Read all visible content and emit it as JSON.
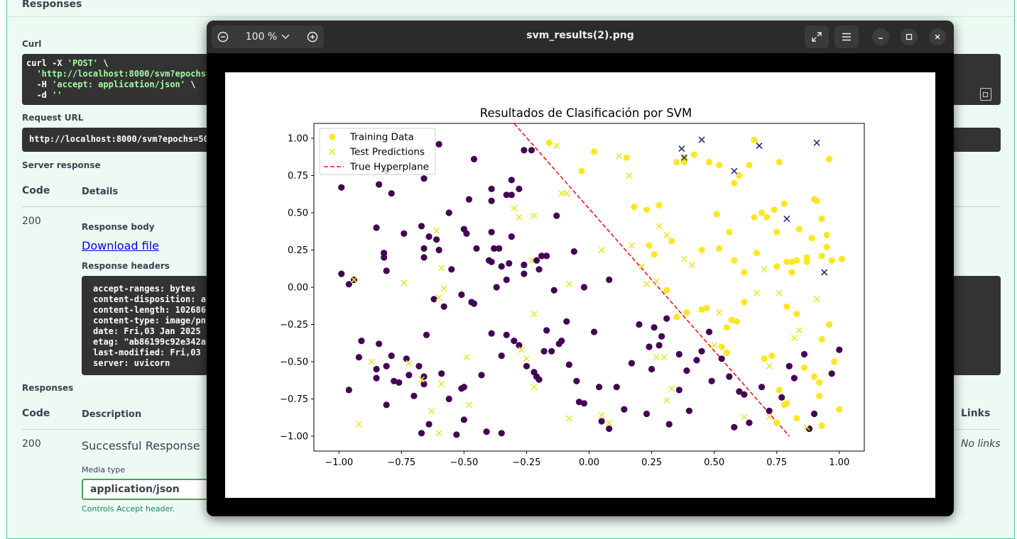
{
  "background": {
    "section_title": "Responses",
    "curl_label": "Curl",
    "curl_lines": [
      "curl -X ",
      "'POST'",
      " \\",
      "  ",
      "'http://localhost:8000/svm?epochs=",
      "  -H ",
      "'accept: application/json'",
      " \\",
      "  -d ",
      "''"
    ],
    "request_url_label": "Request URL",
    "request_url": "http://localhost:8000/svm?epochs=50",
    "server_response_label": "Server response",
    "code_header": "Code",
    "details_header": "Details",
    "status_code": "200",
    "response_body_label": "Response body",
    "download_link": "Download file",
    "response_headers_label": "Response headers",
    "headers": [
      "accept-ranges: bytes",
      "content-disposition: a",
      "content-length: 102686",
      "content-type: image/pn",
      "date: Fri,03 Jan 2025",
      "etag: \"ab86199c92e342a",
      "last-modified: Fri,03",
      "server: uvicorn"
    ],
    "responses_label": "Responses",
    "description_header": "Description",
    "links_header": "Links",
    "resp_code": "200",
    "resp_description": "Successful Response",
    "no_links": "No links",
    "media_type_label": "Media type",
    "media_type_value": "application/json",
    "controls_text": "Controls Accept header."
  },
  "viewer": {
    "zoom_level": "100 %",
    "title": "svm_results(2).png"
  },
  "chart_data": {
    "type": "scatter",
    "title": "Resultados de Clasificación por SVM",
    "xlim": [
      -1.1,
      1.1
    ],
    "ylim": [
      -1.1,
      1.1
    ],
    "ticks": [
      -1.0,
      -0.75,
      -0.5,
      -0.25,
      0.0,
      0.25,
      0.5,
      0.75,
      1.0
    ],
    "tick_labels": [
      "−1.00",
      "−0.75",
      "−0.50",
      "−0.25",
      "0.00",
      "0.25",
      "0.50",
      "0.75",
      "1.00"
    ],
    "legend": [
      "Training Data",
      "Test Predictions",
      "True Hyperplane"
    ],
    "legend_position": "upper-left",
    "colors": {
      "class0": "#440154",
      "class1": "#fde725",
      "test0": "#2a2a7a",
      "test1": "#e3e83b",
      "hyperplane": "#e31a1c"
    },
    "hyperplane": {
      "points": [
        [
          -0.3,
          1.1
        ],
        [
          0.8,
          -1.0
        ]
      ]
    },
    "training_class0": [
      [
        -0.99,
        0.67
      ],
      [
        -0.99,
        0.09
      ],
      [
        -0.96,
        0.02
      ],
      [
        -0.94,
        0.05
      ],
      [
        -0.85,
        0.4
      ],
      [
        -0.84,
        0.69
      ],
      [
        -0.81,
        0.78
      ],
      [
        -0.79,
        0.63
      ],
      [
        -0.82,
        0.23
      ],
      [
        -0.82,
        0.2
      ],
      [
        -0.81,
        0.11
      ],
      [
        -0.74,
        0.36
      ],
      [
        -0.67,
        0.41
      ],
      [
        -0.64,
        0.34
      ],
      [
        -0.66,
        0.26
      ],
      [
        -0.61,
        0.32
      ],
      [
        -0.66,
        0.73
      ],
      [
        -0.6,
        0.96
      ],
      [
        -0.56,
        0.5
      ],
      [
        -0.5,
        0.39
      ],
      [
        -0.49,
        0.36
      ],
      [
        -0.48,
        0.59
      ],
      [
        -0.45,
        0.26
      ],
      [
        -0.46,
        0.86
      ],
      [
        -0.39,
        0.66
      ],
      [
        -0.39,
        0.37
      ],
      [
        -0.38,
        0.26
      ],
      [
        -0.36,
        0.26
      ],
      [
        -0.39,
        0.58
      ],
      [
        -0.35,
        0.14
      ],
      [
        -0.33,
        0.62
      ],
      [
        -0.31,
        0.62
      ],
      [
        -0.31,
        0.72
      ],
      [
        -0.31,
        0.34
      ],
      [
        -0.28,
        0.66
      ],
      [
        -0.26,
        0.92
      ],
      [
        -0.23,
        0.92
      ],
      [
        -0.19,
        0.21
      ],
      [
        -0.17,
        0.21
      ],
      [
        -0.13,
        0.48
      ],
      [
        -0.06,
        0.24
      ],
      [
        -0.6,
        0.25
      ],
      [
        -0.66,
        0.2
      ],
      [
        -0.55,
        0.12
      ],
      [
        -0.62,
        -0.08
      ],
      [
        -0.58,
        -0.13
      ],
      [
        -0.51,
        -0.05
      ],
      [
        -0.47,
        -0.1
      ],
      [
        -0.46,
        -0.11
      ],
      [
        -0.4,
        0.18
      ],
      [
        -0.39,
        0.17
      ],
      [
        -0.37,
        -0.0
      ],
      [
        -0.33,
        0.05
      ],
      [
        -0.32,
        0.16
      ],
      [
        -0.26,
        0.15
      ],
      [
        -0.26,
        0.09
      ],
      [
        -0.21,
        0.18
      ],
      [
        -0.2,
        0.12
      ],
      [
        -0.14,
        -0.02
      ],
      [
        -0.02,
        -0.0
      ],
      [
        0.08,
        0.05
      ],
      [
        -0.92,
        -0.47
      ],
      [
        -0.91,
        -0.36
      ],
      [
        -0.96,
        -0.69
      ],
      [
        -0.85,
        -0.55
      ],
      [
        -0.85,
        -0.61
      ],
      [
        -0.84,
        -0.38
      ],
      [
        -0.81,
        -0.53
      ],
      [
        -0.81,
        -0.79
      ],
      [
        -0.78,
        -0.63
      ],
      [
        -0.79,
        -0.46
      ],
      [
        -0.73,
        -0.48
      ],
      [
        -0.76,
        -0.64
      ],
      [
        -0.7,
        -0.73
      ],
      [
        -0.68,
        -0.53
      ],
      [
        -0.66,
        -0.6
      ],
      [
        -0.66,
        -0.65
      ],
      [
        -0.67,
        -0.98
      ],
      [
        -0.65,
        -0.32
      ],
      [
        -0.59,
        -0.58
      ],
      [
        -0.56,
        -0.75
      ],
      [
        -0.51,
        -0.68
      ],
      [
        -0.5,
        -0.67
      ],
      [
        -0.5,
        -0.89
      ],
      [
        -0.43,
        -0.59
      ],
      [
        -0.41,
        -0.97
      ],
      [
        -0.39,
        -0.31
      ],
      [
        -0.35,
        -0.46
      ],
      [
        -0.35,
        -0.98
      ],
      [
        -0.33,
        -0.32
      ],
      [
        -0.3,
        -0.36
      ],
      [
        -0.28,
        -0.39
      ],
      [
        -0.25,
        -0.53
      ],
      [
        -0.22,
        -0.57
      ],
      [
        -0.2,
        -0.62
      ],
      [
        -0.18,
        -0.43
      ],
      [
        -0.17,
        -0.29
      ],
      [
        -0.15,
        -0.43
      ],
      [
        -0.12,
        -0.38
      ],
      [
        -0.11,
        -0.36
      ],
      [
        -0.09,
        -0.23
      ],
      [
        -0.08,
        -0.52
      ],
      [
        -0.05,
        -0.63
      ],
      [
        -0.04,
        -0.77
      ],
      [
        -0.02,
        -0.78
      ],
      [
        0.02,
        -0.3
      ],
      [
        0.04,
        -0.67
      ],
      [
        0.05,
        -0.9
      ],
      [
        0.08,
        -0.95
      ],
      [
        0.11,
        -0.67
      ],
      [
        0.14,
        -0.82
      ],
      [
        0.17,
        -0.51
      ],
      [
        0.2,
        -0.25
      ],
      [
        0.24,
        -0.4
      ],
      [
        0.25,
        -0.55
      ],
      [
        0.28,
        -0.39
      ],
      [
        0.29,
        -0.33
      ],
      [
        0.31,
        -0.21
      ],
      [
        0.32,
        -0.92
      ],
      [
        0.36,
        -0.69
      ],
      [
        0.39,
        -0.56
      ],
      [
        0.4,
        -0.83
      ],
      [
        0.43,
        -0.49
      ],
      [
        0.45,
        -0.43
      ],
      [
        0.48,
        -0.3
      ],
      [
        0.49,
        -0.63
      ],
      [
        0.53,
        -0.48
      ],
      [
        0.56,
        -0.6
      ],
      [
        0.58,
        -0.94
      ],
      [
        0.6,
        -0.7
      ],
      [
        0.62,
        -0.72
      ],
      [
        0.64,
        -0.91
      ],
      [
        0.69,
        -0.67
      ],
      [
        0.72,
        -0.83
      ],
      [
        0.77,
        -0.74
      ],
      [
        0.8,
        -0.53
      ],
      [
        0.82,
        -0.61
      ],
      [
        0.86,
        -0.45
      ],
      [
        0.88,
        -0.95
      ],
      [
        0.9,
        -0.85
      ],
      [
        0.97,
        -0.58
      ],
      [
        1.0,
        -0.42
      ],
      [
        0.23,
        -0.85
      ],
      [
        0.36,
        -0.45
      ],
      [
        0.26,
        -0.27
      ],
      [
        -0.21,
        -0.6
      ],
      [
        -0.72,
        -0.59
      ],
      [
        -0.64,
        -0.92
      ],
      [
        -0.53,
        -0.99
      ]
    ],
    "training_class1": [
      [
        -0.16,
        0.97
      ],
      [
        -0.03,
        0.78
      ],
      [
        0.02,
        0.91
      ],
      [
        0.15,
        0.87
      ],
      [
        0.18,
        0.54
      ],
      [
        0.23,
        0.52
      ],
      [
        0.24,
        0.28
      ],
      [
        0.28,
        0.55
      ],
      [
        0.26,
        0.22
      ],
      [
        0.31,
        -0.02
      ],
      [
        0.35,
        0.84
      ],
      [
        0.38,
        0.87
      ],
      [
        0.42,
        0.89
      ],
      [
        0.48,
        0.84
      ],
      [
        0.52,
        0.82
      ],
      [
        0.6,
        0.75
      ],
      [
        0.64,
        0.82
      ],
      [
        0.66,
        0.99
      ],
      [
        0.69,
        0.5
      ],
      [
        0.76,
        0.84
      ],
      [
        0.78,
        0.56
      ],
      [
        0.75,
        0.37
      ],
      [
        0.79,
        0.17
      ],
      [
        0.81,
        0.17
      ],
      [
        0.84,
        0.39
      ],
      [
        0.87,
        0.2
      ],
      [
        0.9,
        0.59
      ],
      [
        0.91,
        0.58
      ],
      [
        0.93,
        0.46
      ],
      [
        0.95,
        0.35
      ],
      [
        0.96,
        0.86
      ],
      [
        0.95,
        0.27
      ],
      [
        0.93,
        0.21
      ],
      [
        0.89,
        0.33
      ],
      [
        0.35,
        -0.2
      ],
      [
        0.39,
        -0.17
      ],
      [
        0.45,
        -0.15
      ],
      [
        0.47,
        -0.14
      ],
      [
        0.55,
        -0.27
      ],
      [
        0.57,
        -0.22
      ],
      [
        0.59,
        -0.23
      ],
      [
        0.62,
        -0.1
      ],
      [
        0.56,
        0.37
      ],
      [
        0.52,
        0.26
      ],
      [
        0.58,
        0.18
      ],
      [
        0.58,
        0.7
      ],
      [
        0.66,
        0.47
      ],
      [
        0.74,
        0.52
      ],
      [
        0.75,
        0.14
      ],
      [
        0.81,
        0.1
      ],
      [
        0.83,
        0.18
      ],
      [
        0.79,
        -0.13
      ],
      [
        0.83,
        -0.18
      ],
      [
        0.86,
        -0.54
      ],
      [
        0.9,
        -0.6
      ],
      [
        0.93,
        -0.35
      ],
      [
        0.96,
        -0.25
      ],
      [
        0.98,
        -0.5
      ],
      [
        1.0,
        -0.82
      ],
      [
        0.55,
        -0.44
      ],
      [
        0.53,
        -0.4
      ],
      [
        0.45,
        0.25
      ],
      [
        0.51,
        0.49
      ],
      [
        0.7,
        -0.48
      ],
      [
        0.73,
        -0.46
      ],
      [
        0.76,
        -0.69
      ],
      [
        0.79,
        -0.78
      ],
      [
        0.75,
        -0.91
      ],
      [
        0.83,
        -0.88
      ],
      [
        0.92,
        -0.73
      ],
      [
        0.93,
        -0.93
      ],
      [
        0.62,
        0.1
      ],
      [
        0.67,
        0.23
      ],
      [
        0.71,
        0.47
      ],
      [
        0.87,
        0.17
      ],
      [
        0.97,
        0.18
      ],
      [
        0.38,
        0.84
      ],
      [
        0.33,
        0.31
      ],
      [
        1.01,
        0.19
      ],
      [
        0.92,
        -0.64
      ],
      [
        0.78,
        -0.79
      ]
    ],
    "test_class0": [
      [
        0.37,
        0.93
      ],
      [
        0.38,
        0.87
      ],
      [
        0.45,
        0.99
      ],
      [
        0.58,
        0.78
      ],
      [
        0.68,
        0.95
      ],
      [
        0.79,
        0.46
      ],
      [
        0.91,
        0.97
      ],
      [
        0.94,
        0.1
      ]
    ],
    "test_class1": [
      [
        -0.13,
        0.95
      ],
      [
        -0.09,
        0.63
      ],
      [
        -0.11,
        0.63
      ],
      [
        0.12,
        0.88
      ],
      [
        0.16,
        0.75
      ],
      [
        -0.3,
        0.53
      ],
      [
        -0.28,
        0.47
      ],
      [
        -0.22,
        0.48
      ],
      [
        -0.61,
        0.38
      ],
      [
        -0.59,
        0.13
      ],
      [
        -0.58,
        -0.01
      ],
      [
        -0.6,
        -0.07
      ],
      [
        -0.74,
        0.03
      ],
      [
        -0.94,
        0.05
      ],
      [
        -0.92,
        -0.92
      ],
      [
        -0.87,
        -0.5
      ],
      [
        -0.72,
        -0.51
      ],
      [
        -0.67,
        -0.62
      ],
      [
        -0.63,
        -0.83
      ],
      [
        -0.59,
        -0.65
      ],
      [
        -0.6,
        -0.98
      ],
      [
        -0.49,
        -0.47
      ],
      [
        -0.48,
        -0.79
      ],
      [
        -0.27,
        -0.42
      ],
      [
        -0.25,
        -0.48
      ],
      [
        -0.22,
        -0.18
      ],
      [
        -0.22,
        -0.67
      ],
      [
        -0.23,
        0.18
      ],
      [
        -0.08,
        0.02
      ],
      [
        -0.08,
        -0.88
      ],
      [
        0.05,
        0.25
      ],
      [
        0.05,
        -0.86
      ],
      [
        0.08,
        -0.91
      ],
      [
        0.17,
        0.28
      ],
      [
        0.21,
        0.14
      ],
      [
        0.23,
        0.02
      ],
      [
        0.27,
        0.04
      ],
      [
        0.28,
        0.41
      ],
      [
        0.31,
        0.35
      ],
      [
        0.3,
        -0.47
      ],
      [
        0.31,
        -0.76
      ],
      [
        0.38,
        0.19
      ],
      [
        0.41,
        0.15
      ],
      [
        0.5,
        -0.39
      ],
      [
        0.52,
        -0.17
      ],
      [
        0.62,
        -0.87
      ],
      [
        0.67,
        -0.04
      ],
      [
        0.7,
        0.12
      ],
      [
        0.72,
        -0.87
      ],
      [
        0.76,
        -0.04
      ],
      [
        0.84,
        -0.29
      ],
      [
        0.82,
        -0.34
      ],
      [
        0.87,
        -0.94
      ],
      [
        0.91,
        -0.08
      ],
      [
        0.33,
        -0.68
      ],
      [
        0.27,
        -0.47
      ],
      [
        0.72,
        -0.53
      ]
    ]
  }
}
